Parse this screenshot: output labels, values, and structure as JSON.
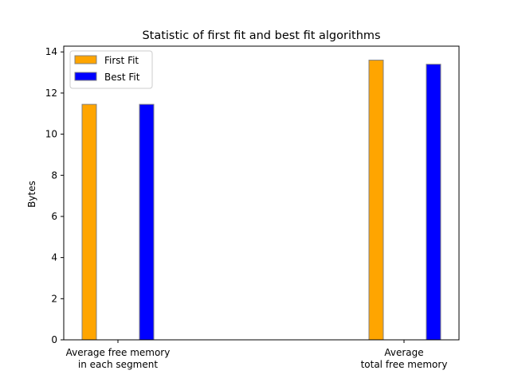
{
  "chart_data": {
    "type": "bar",
    "title": "Statistic of first fit and best fit algorithms",
    "xlabel": "",
    "ylabel": "Bytes",
    "ylim": [
      0,
      14.28
    ],
    "yticks": [
      0,
      2,
      4,
      6,
      8,
      10,
      12,
      14
    ],
    "grid": false,
    "legend_position": "top-left",
    "categories": [
      [
        "Average free memory",
        "in each segment"
      ],
      [
        "Average",
        "total free memory"
      ]
    ],
    "series": [
      {
        "name": "First Fit",
        "color": "#ffa500",
        "values": [
          11.45,
          13.6
        ]
      },
      {
        "name": "Best Fit",
        "color": "#0000ff",
        "values": [
          11.45,
          13.4
        ]
      }
    ],
    "bar_edge_color": "#808080"
  }
}
